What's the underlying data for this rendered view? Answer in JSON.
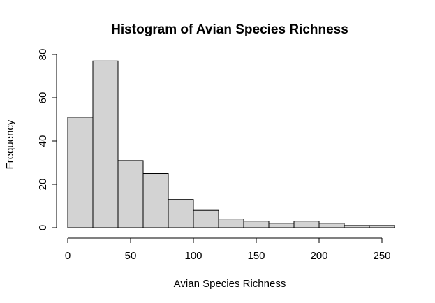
{
  "chart_data": {
    "type": "bar",
    "title": "Histogram of Avian Species Richness",
    "xlabel": "Avian Species Richness",
    "ylabel": "Frequency",
    "bin_edges": [
      0,
      20,
      40,
      60,
      80,
      100,
      120,
      140,
      160,
      180,
      200,
      220,
      240,
      260
    ],
    "values": [
      51,
      77,
      31,
      25,
      13,
      8,
      4,
      3,
      2,
      3,
      2,
      1,
      1
    ],
    "xlim": [
      0,
      260
    ],
    "ylim": [
      0,
      80
    ],
    "x_ticks": [
      "0",
      "50",
      "100",
      "150",
      "200",
      "250"
    ],
    "y_ticks": [
      "0",
      "20",
      "40",
      "60",
      "80"
    ],
    "bar_fill": "#d3d3d3",
    "bar_stroke": "#000000",
    "grid": false,
    "legend": "none"
  }
}
